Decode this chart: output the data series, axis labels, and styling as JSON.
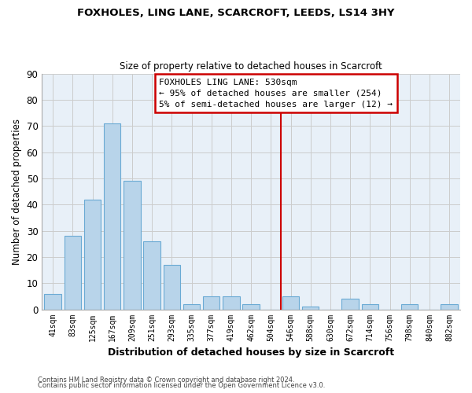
{
  "title": "FOXHOLES, LING LANE, SCARCROFT, LEEDS, LS14 3HY",
  "subtitle": "Size of property relative to detached houses in Scarcroft",
  "xlabel": "Distribution of detached houses by size in Scarcroft",
  "ylabel": "Number of detached properties",
  "bar_labels": [
    "41sqm",
    "83sqm",
    "125sqm",
    "167sqm",
    "209sqm",
    "251sqm",
    "293sqm",
    "335sqm",
    "377sqm",
    "419sqm",
    "462sqm",
    "504sqm",
    "546sqm",
    "588sqm",
    "630sqm",
    "672sqm",
    "714sqm",
    "756sqm",
    "798sqm",
    "840sqm",
    "882sqm"
  ],
  "bar_values": [
    6,
    28,
    42,
    71,
    49,
    26,
    17,
    2,
    5,
    5,
    2,
    0,
    5,
    1,
    0,
    4,
    2,
    0,
    2,
    0,
    2
  ],
  "bar_color": "#b8d4ea",
  "bar_edge_color": "#6aaad4",
  "vline_color": "#cc0000",
  "ylim": [
    0,
    90
  ],
  "yticks": [
    0,
    10,
    20,
    30,
    40,
    50,
    60,
    70,
    80,
    90
  ],
  "annotation_title": "FOXHOLES LING LANE: 530sqm",
  "annotation_line1": "← 95% of detached houses are smaller (254)",
  "annotation_line2": "5% of semi-detached houses are larger (12) →",
  "footer1": "Contains HM Land Registry data © Crown copyright and database right 2024.",
  "footer2": "Contains public sector information licensed under the Open Government Licence v3.0.",
  "grid_color": "#cccccc",
  "bg_color": "#e8f0f8"
}
